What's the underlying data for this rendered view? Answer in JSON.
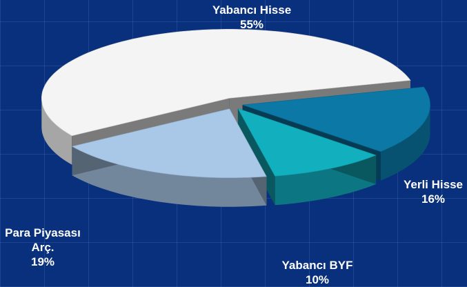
{
  "chart_data": {
    "type": "pie",
    "categories": [
      "Yabancı Hisse",
      "Yerli Hisse",
      "Yabancı BYF",
      "Para Piyasası Arç."
    ],
    "values": [
      55,
      16,
      10,
      19
    ],
    "value_labels": [
      "55%",
      "16%",
      "10%",
      "19%"
    ],
    "colors": [
      "#f4f4f4",
      "#0b78a6",
      "#12afbf",
      "#a9c7e6"
    ]
  }
}
